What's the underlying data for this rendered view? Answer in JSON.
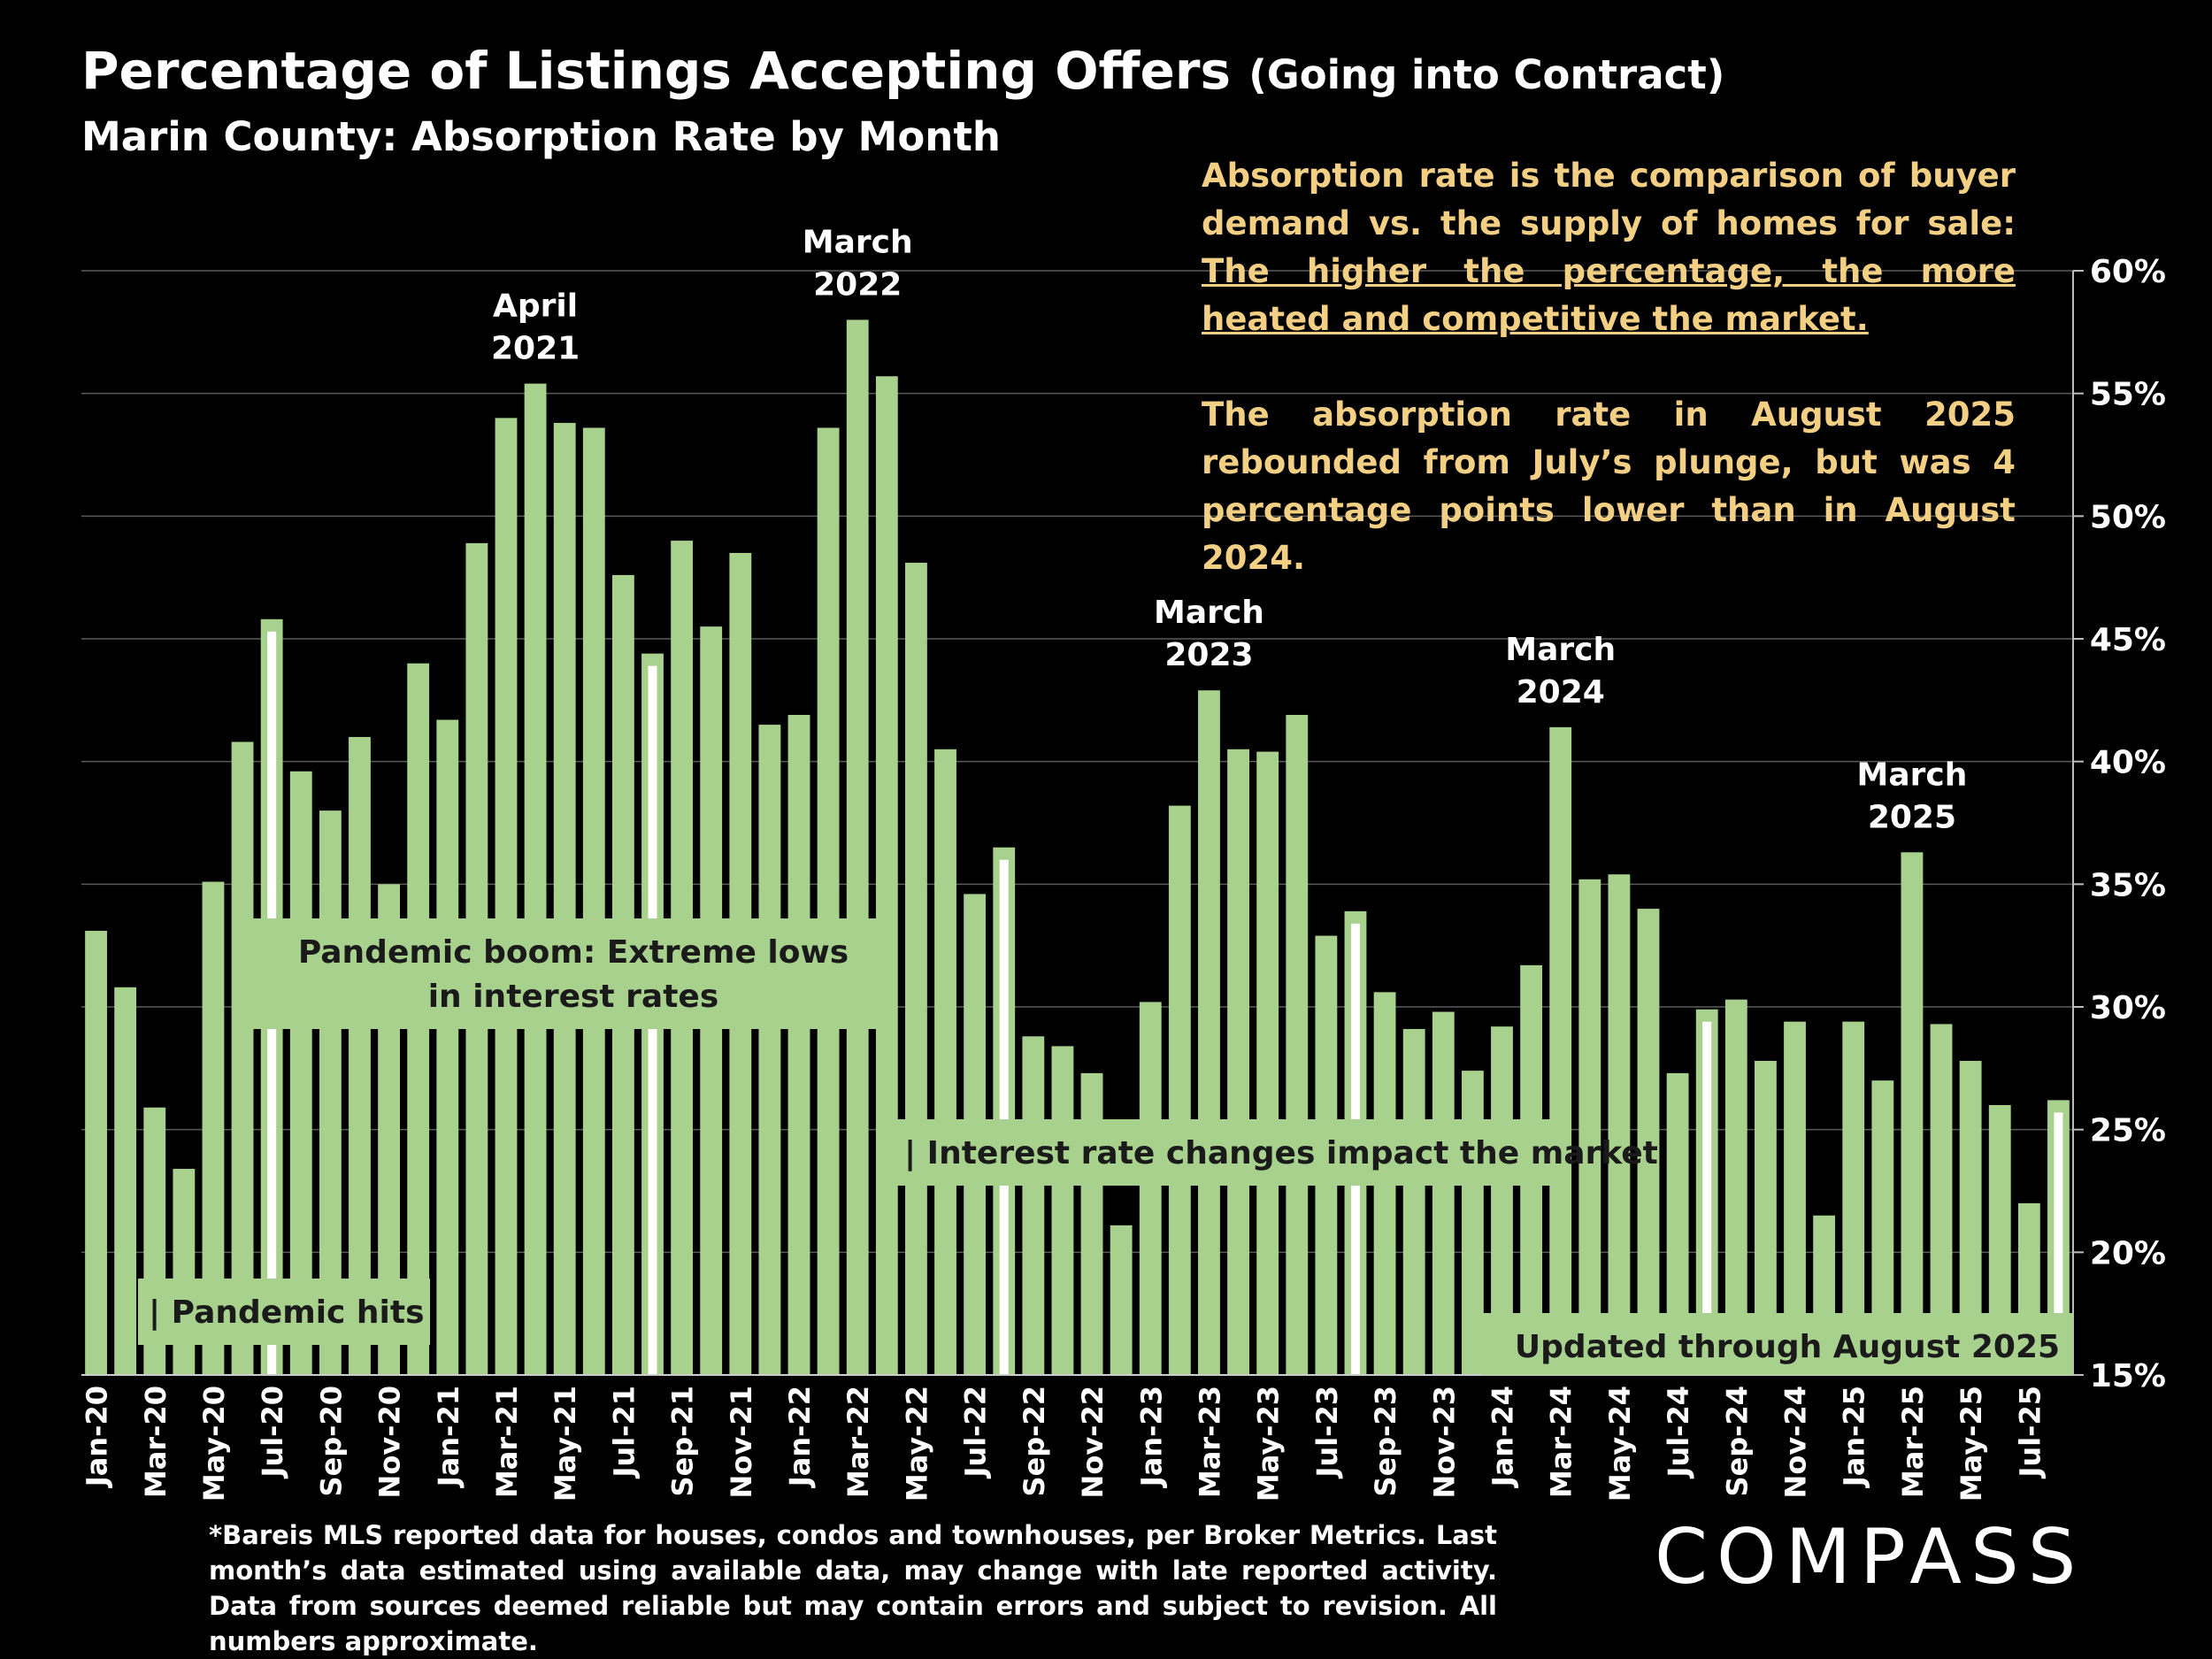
{
  "title": "Percentage of Listings Accepting Offers",
  "title_suffix": "(Going into Contract)",
  "subtitle": "Marin County:  Absorption Rate by Month",
  "note": {
    "p1_plain": "Absorption rate is the comparison of buyer demand vs. the supply of homes for sale: ",
    "p1_underlined": "The higher the percentage, the more heated and competitive the market.",
    "p2": "The absorption rate in August 2025 rebounded from July’s plunge, but was 4 percentage points lower than in August 2024."
  },
  "footnote": "*Bareis MLS reported data for houses, condos and townhouses, per Broker Metrics. Last month’s data estimated using available data, may change with late reported activity. Data from sources deemed reliable but may contain errors and subject to revision. All numbers approximate.",
  "logo": "COMPASS",
  "colors": {
    "bar": "#a9d18e",
    "note_text": "#f3cf84",
    "background": "#000000",
    "grid": "#5a5a5a"
  },
  "chart_data": {
    "type": "bar",
    "ylim": [
      15,
      60
    ],
    "yticks": [
      "15%",
      "20%",
      "25%",
      "30%",
      "35%",
      "40%",
      "45%",
      "50%",
      "55%",
      "60%"
    ],
    "y_axis_side": "right",
    "grid": true,
    "x_tick_labels": [
      "Jan-20",
      "Mar-20",
      "May-20",
      "Jul-20",
      "Sep-20",
      "Nov-20",
      "Jan-21",
      "Mar-21",
      "May-21",
      "Jul-21",
      "Sep-21",
      "Nov-21",
      "Jan-22",
      "Mar-22",
      "May-22",
      "Jul-22",
      "Sep-22",
      "Nov-22",
      "Jan-23",
      "Mar-23",
      "May-23",
      "Jul-23",
      "Sep-23",
      "Nov-23",
      "Jan-24",
      "Mar-24",
      "May-24",
      "Jul-24",
      "Sep-24",
      "Nov-24",
      "Jan-25",
      "Mar-25",
      "May-25",
      "Jul-25"
    ],
    "categories": [
      "Jan-20",
      "Feb-20",
      "Mar-20",
      "Apr-20",
      "May-20",
      "Jun-20",
      "Jul-20",
      "Aug-20",
      "Sep-20",
      "Oct-20",
      "Nov-20",
      "Dec-20",
      "Jan-21",
      "Feb-21",
      "Mar-21",
      "Apr-21",
      "May-21",
      "Jun-21",
      "Jul-21",
      "Aug-21",
      "Sep-21",
      "Oct-21",
      "Nov-21",
      "Dec-21",
      "Jan-22",
      "Feb-22",
      "Mar-22",
      "Apr-22",
      "May-22",
      "Jun-22",
      "Jul-22",
      "Aug-22",
      "Sep-22",
      "Oct-22",
      "Nov-22",
      "Dec-22",
      "Jan-23",
      "Feb-23",
      "Mar-23",
      "Apr-23",
      "May-23",
      "Jun-23",
      "Jul-23",
      "Aug-23",
      "Sep-23",
      "Oct-23",
      "Nov-23",
      "Dec-23",
      "Jan-24",
      "Feb-24",
      "Mar-24",
      "Apr-24",
      "May-24",
      "Jun-24",
      "Jul-24",
      "Aug-24",
      "Sep-24",
      "Oct-24",
      "Nov-24",
      "Dec-24",
      "Jan-25",
      "Feb-25",
      "Mar-25",
      "Apr-25",
      "May-25",
      "Jun-25",
      "Jul-25",
      "Aug-25"
    ],
    "values": [
      33.1,
      30.8,
      25.9,
      23.4,
      35.1,
      40.8,
      45.8,
      39.6,
      38.0,
      41.0,
      35.0,
      44.0,
      41.7,
      48.9,
      54.0,
      55.4,
      53.8,
      53.6,
      47.6,
      44.4,
      49.0,
      45.5,
      48.5,
      41.5,
      41.9,
      53.6,
      58.0,
      55.7,
      48.1,
      40.5,
      34.6,
      36.5,
      28.8,
      28.4,
      27.3,
      21.1,
      30.2,
      38.2,
      42.9,
      40.5,
      40.4,
      41.9,
      32.9,
      33.9,
      30.6,
      29.1,
      29.8,
      27.4,
      29.2,
      31.7,
      41.4,
      35.2,
      35.4,
      34.0,
      27.3,
      29.9,
      30.3,
      27.8,
      29.4,
      21.5,
      29.4,
      27.0,
      36.3,
      29.3,
      27.8,
      26.0,
      22.0,
      26.2
    ],
    "highlighted_bars": [
      "Jul-20",
      "Aug-21",
      "Aug-22",
      "Aug-23",
      "Aug-24",
      "Aug-25"
    ],
    "annotations": [
      {
        "target": "Apr-21",
        "lines": [
          "April",
          "2021"
        ]
      },
      {
        "target": "Mar-22",
        "lines": [
          "March",
          "2022"
        ]
      },
      {
        "target": "Mar-23",
        "lines": [
          "March",
          "2023"
        ]
      },
      {
        "target": "Mar-24",
        "lines": [
          "March",
          "2024"
        ]
      },
      {
        "target": "Mar-25",
        "lines": [
          "March",
          "2025"
        ]
      }
    ],
    "callouts": [
      {
        "lines": [
          "Pandemic boom: Extreme lows",
          "in interest rates"
        ]
      },
      {
        "lines": [
          "| Pandemic hits"
        ]
      },
      {
        "lines": [
          "| Interest rate changes impact the market"
        ]
      },
      {
        "lines": [
          "Updated through August 2025"
        ]
      }
    ]
  }
}
